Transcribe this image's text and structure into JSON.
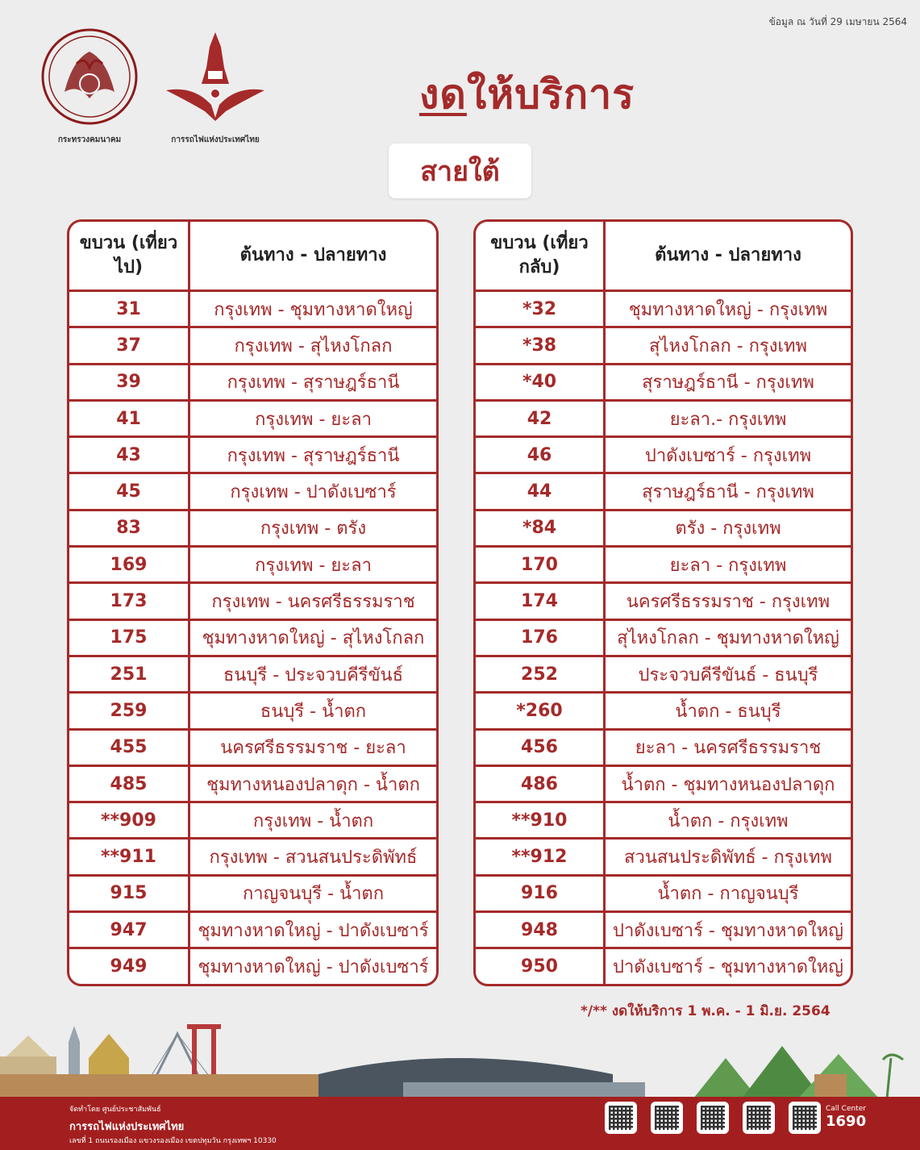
{
  "header": {
    "date_note": "ข้อมูล ณ วันที่ 29 เมษายน 2564",
    "ministry_caption": "กระทรวงคมนาคม",
    "srt_caption": "การรถไฟแห่งประเทศไทย",
    "title_underlined": "งด",
    "title_rest": "ให้บริการ",
    "subtitle": "สายใต้"
  },
  "outbound": {
    "header_train": "ขบวน (เที่ยวไป)",
    "header_route": "ต้นทาง - ปลายทาง",
    "rows": [
      {
        "train": "31",
        "route": "กรุงเทพ - ชุมทางหาดใหญ่"
      },
      {
        "train": "37",
        "route": "กรุงเทพ - สุไหงโกลก"
      },
      {
        "train": "39",
        "route": "กรุงเทพ - สุราษฎร์ธานี"
      },
      {
        "train": "41",
        "route": "กรุงเทพ - ยะลา"
      },
      {
        "train": "43",
        "route": "กรุงเทพ - สุราษฎร์ธานี"
      },
      {
        "train": "45",
        "route": "กรุงเทพ - ปาดังเบซาร์"
      },
      {
        "train": "83",
        "route": "กรุงเทพ - ตรัง"
      },
      {
        "train": "169",
        "route": "กรุงเทพ - ยะลา"
      },
      {
        "train": "173",
        "route": "กรุงเทพ - นครศรีธรรมราช"
      },
      {
        "train": "175",
        "route": "ชุมทางหาดใหญ่ - สุไหงโกลก"
      },
      {
        "train": "251",
        "route": "ธนบุรี - ประจวบคีรีขันธ์"
      },
      {
        "train": "259",
        "route": "ธนบุรี - น้ำตก"
      },
      {
        "train": "455",
        "route": "นครศรีธรรมราช - ยะลา"
      },
      {
        "train": "485",
        "route": "ชุมทางหนองปลาดุก - น้ำตก"
      },
      {
        "train": "**909",
        "route": "กรุงเทพ - น้ำตก"
      },
      {
        "train": "**911",
        "route": "กรุงเทพ - สวนสนประดิพัทธ์"
      },
      {
        "train": "915",
        "route": "กาญจนบุรี - น้ำตก"
      },
      {
        "train": "947",
        "route": "ชุมทางหาดใหญ่ - ปาดังเบซาร์"
      },
      {
        "train": "949",
        "route": "ชุมทางหาดใหญ่ - ปาดังเบซาร์"
      }
    ]
  },
  "inbound": {
    "header_train": "ขบวน (เที่ยวกลับ)",
    "header_route": "ต้นทาง - ปลายทาง",
    "rows": [
      {
        "train": "*32",
        "route": "ชุมทางหาดใหญ่ - กรุงเทพ"
      },
      {
        "train": "*38",
        "route": "สุไหงโกลก - กรุงเทพ"
      },
      {
        "train": "*40",
        "route": "สุราษฎร์ธานี - กรุงเทพ"
      },
      {
        "train": "42",
        "route": "ยะลา.- กรุงเทพ"
      },
      {
        "train": "46",
        "route": "ปาดังเบซาร์ - กรุงเทพ"
      },
      {
        "train": "44",
        "route": "สุราษฎร์ธานี - กรุงเทพ"
      },
      {
        "train": "*84",
        "route": "ตรัง - กรุงเทพ"
      },
      {
        "train": "170",
        "route": "ยะลา - กรุงเทพ"
      },
      {
        "train": "174",
        "route": "นครศรีธรรมราช - กรุงเทพ"
      },
      {
        "train": "176",
        "route": "สุไหงโกลก - ชุมทางหาดใหญ่"
      },
      {
        "train": "252",
        "route": "ประจวบคีรีขันธ์ - ธนบุรี"
      },
      {
        "train": "*260",
        "route": "น้ำตก - ธนบุรี"
      },
      {
        "train": "456",
        "route": "ยะลา - นครศรีธรรมราช"
      },
      {
        "train": "486",
        "route": "น้ำตก - ชุมทางหนองปลาดุก"
      },
      {
        "train": "**910",
        "route": "น้ำตก - กรุงเทพ"
      },
      {
        "train": "**912",
        "route": "สวนสนประดิพัทธ์ - กรุงเทพ"
      },
      {
        "train": "916",
        "route": "น้ำตก - กาญจนบุรี"
      },
      {
        "train": "948",
        "route": "ปาดังเบซาร์ - ชุมทางหาดใหญ่"
      },
      {
        "train": "950",
        "route": "ปาดังเบซาร์ - ชุมทางหาดใหญ่"
      }
    ]
  },
  "footnote": "*/** งดให้บริการ 1 พ.ค. - 1 มิ.ย. 2564",
  "footer": {
    "org_small": "จัดทำโดย ศูนย์ประชาสัมพันธ์",
    "org_name": "การรถไฟแห่งประเทศไทย",
    "org_addr": "เลขที่ 1 ถนนรองเมือง แขวงรองเมือง เขตปทุมวัน กรุงเทพฯ 10330",
    "call_center_label": "Call Center",
    "call_center_number": "1690"
  },
  "colors": {
    "brand_red": "#a52a2a",
    "footer_red": "#a31f1f",
    "background": "#ededed"
  }
}
